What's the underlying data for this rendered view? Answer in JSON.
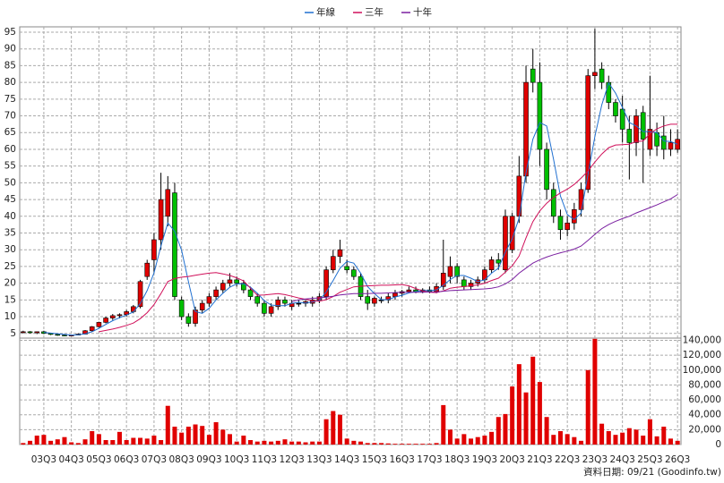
{
  "chart_data": {
    "type": "candlestick",
    "categories": [
      null,
      null,
      null,
      "03Q3",
      null,
      null,
      null,
      "04Q3",
      null,
      null,
      null,
      "05Q3",
      null,
      null,
      null,
      "06Q3",
      null,
      null,
      null,
      "07Q3",
      null,
      null,
      null,
      "08Q3",
      null,
      null,
      null,
      "09Q3",
      null,
      null,
      null,
      "10Q3",
      null,
      null,
      null,
      "11Q3",
      null,
      null,
      null,
      "12Q3",
      null,
      null,
      null,
      "13Q3",
      null,
      null,
      null,
      "14Q3",
      null,
      null,
      null,
      "15Q3",
      null,
      null,
      null,
      "16Q3",
      null,
      null,
      null,
      "17Q3",
      null,
      null,
      null,
      "18Q3",
      null,
      null,
      null,
      "19Q3",
      null,
      null,
      null,
      "20Q3",
      null,
      null,
      null,
      "21Q3",
      null,
      null,
      null,
      "22Q3",
      null,
      null,
      null,
      "23Q3",
      null,
      null,
      null,
      "24Q3",
      null,
      null,
      null,
      "25Q3",
      null,
      null,
      null,
      "26Q3"
    ],
    "ohlc": {
      "open": [
        5.3,
        5.5,
        5.2,
        5.5,
        5.0,
        4.7,
        4.5,
        4.4,
        4.5,
        4.8,
        5.8,
        7.0,
        8.3,
        9.6,
        10.3,
        10.6,
        11.5,
        13,
        22,
        27,
        33,
        40,
        47,
        15,
        10,
        8,
        12,
        14,
        16,
        18,
        20,
        21,
        20,
        18,
        16,
        14,
        11,
        13,
        15,
        13,
        14,
        14,
        14,
        15,
        16,
        24,
        28,
        25,
        24,
        22,
        16,
        14,
        15,
        15,
        16,
        17,
        17.5,
        18,
        17.5,
        18,
        17.5,
        19,
        22,
        25,
        21,
        19,
        20,
        21,
        24,
        27,
        24,
        30,
        40,
        52,
        84,
        80,
        60,
        48,
        40,
        36,
        38,
        42,
        48,
        82,
        84,
        80,
        74,
        72,
        66,
        62,
        71,
        60,
        65,
        64,
        60,
        60
      ],
      "high": [
        5.8,
        5.7,
        5.6,
        5.8,
        5.1,
        4.9,
        4.7,
        4.6,
        5.0,
        6.0,
        7.2,
        8.5,
        10,
        10.8,
        11,
        12,
        13.5,
        21,
        27,
        35,
        53,
        52,
        50,
        16,
        11,
        13,
        15,
        17,
        19,
        21,
        23,
        22,
        21,
        19,
        17,
        15,
        14,
        16,
        16,
        15,
        15,
        15,
        16,
        17,
        25,
        30,
        33,
        27,
        25,
        23,
        18,
        16,
        16,
        17,
        18,
        18,
        19,
        19,
        18.5,
        19,
        20,
        33,
        28,
        26,
        22,
        21,
        22,
        25,
        28,
        29,
        42,
        41,
        58,
        85,
        90,
        86,
        62,
        50,
        42,
        40,
        44,
        50,
        84,
        96,
        86,
        82,
        75,
        76,
        70,
        72,
        73,
        82,
        68,
        70,
        66,
        66
      ],
      "low": [
        5.0,
        5.0,
        4.8,
        4.8,
        4.5,
        4.3,
        4.2,
        4.2,
        4.4,
        4.7,
        5.6,
        6.8,
        8.0,
        9.0,
        9.5,
        10,
        11,
        12.5,
        21,
        23,
        30,
        37,
        15,
        9,
        7,
        7,
        11,
        13,
        15,
        17,
        19,
        19,
        17,
        15,
        13,
        10,
        10,
        12,
        13,
        12,
        13,
        13,
        13,
        14,
        15,
        23,
        26,
        23,
        21,
        15,
        12,
        13,
        14,
        14,
        15,
        16,
        17,
        17,
        17,
        17,
        17,
        18,
        20,
        20,
        18,
        18,
        19,
        20,
        23,
        24,
        23,
        29,
        38,
        50,
        77,
        55,
        45,
        38,
        33,
        34,
        36,
        40,
        47,
        78,
        78,
        72,
        68,
        62,
        51,
        58,
        50,
        58,
        58,
        57,
        58,
        59
      ],
      "close": [
        5.5,
        5.2,
        5.5,
        5.0,
        4.7,
        4.5,
        4.4,
        4.5,
        4.8,
        5.8,
        7.0,
        8.3,
        9.6,
        10.3,
        10.6,
        11.5,
        13,
        20.5,
        26,
        33,
        45,
        48,
        16,
        10,
        8,
        12,
        14,
        16,
        18,
        20,
        21,
        20,
        18,
        16,
        14,
        11,
        13,
        15,
        14,
        14,
        14,
        14.5,
        15,
        16,
        24,
        28,
        30,
        24,
        22,
        16,
        14,
        15.5,
        15,
        16,
        17,
        17.5,
        18,
        17.5,
        18,
        17.5,
        19,
        23,
        25,
        22,
        19,
        20,
        21,
        24,
        27,
        26,
        40,
        40,
        52,
        80,
        80,
        60,
        48,
        40,
        36,
        38,
        42,
        48,
        82,
        83,
        80,
        74,
        70,
        66,
        62,
        70,
        63,
        66,
        61,
        60,
        62,
        63
      ]
    },
    "up_color": "#e00000",
    "down_color": "#00c000",
    "series": [
      {
        "name": "年線",
        "color": "#1f6fd0",
        "values": [
          null,
          null,
          null,
          5.3,
          5.1,
          4.9,
          4.7,
          4.5,
          4.6,
          4.9,
          5.5,
          6.5,
          7.7,
          8.8,
          9.7,
          10.5,
          11.4,
          13.9,
          17.8,
          23.1,
          31.1,
          38,
          35.5,
          29.8,
          20.5,
          11.5,
          11,
          12.5,
          15,
          17,
          18.8,
          19.8,
          19.8,
          18.8,
          17,
          14.8,
          13.5,
          13.3,
          13.3,
          14,
          14.3,
          14.1,
          14.4,
          14.9,
          17.4,
          20.8,
          24.5,
          26.5,
          26,
          23,
          19,
          16.9,
          15.1,
          15.1,
          15.9,
          16.4,
          17.1,
          17.5,
          17.8,
          17.8,
          18,
          19.4,
          21.1,
          22.3,
          22.3,
          21.5,
          20.5,
          21,
          23,
          24.5,
          29.3,
          33.3,
          39.5,
          53,
          63,
          68,
          67,
          57,
          46,
          40.5,
          39,
          41,
          52.5,
          63.8,
          73.3,
          79.8,
          76.8,
          72.5,
          68,
          67,
          65.3,
          65.3,
          65,
          62.5,
          62.3,
          61.5
        ]
      },
      {
        "name": "三年",
        "color": "#d0105a",
        "values": [
          null,
          null,
          null,
          null,
          null,
          null,
          null,
          null,
          null,
          null,
          null,
          5.5,
          5.9,
          6.3,
          6.8,
          7.4,
          8.1,
          9.4,
          11.2,
          13.6,
          16.9,
          20.5,
          21.4,
          21.8,
          22,
          22.4,
          22.7,
          23,
          23.2,
          22.8,
          22.3,
          21.6,
          20.7,
          18.5,
          16.4,
          16.5,
          16.7,
          16.9,
          16.6,
          16.1,
          15.6,
          15.2,
          14.8,
          14.6,
          15.1,
          16,
          17.3,
          18.1,
          18.9,
          19.1,
          19.2,
          19.3,
          19.4,
          19.4,
          19.5,
          19.6,
          19.2,
          18.4,
          17.7,
          17.3,
          17.2,
          17.7,
          18.5,
          18.8,
          19,
          19.2,
          19.5,
          20,
          20.8,
          21.5,
          23.3,
          25.2,
          28.1,
          33.5,
          38.4,
          41.6,
          43.9,
          45.6,
          47,
          48.1,
          49.5,
          51.4,
          53.5,
          56.2,
          58.6,
          60.5,
          61.3,
          61.4,
          61.5,
          62.3,
          62.5,
          64.7,
          66.1,
          67,
          67.5,
          67.5
        ]
      },
      {
        "name": "十年",
        "color": "#7a1fa0",
        "values": [
          null,
          null,
          null,
          null,
          null,
          null,
          null,
          null,
          null,
          null,
          null,
          null,
          null,
          null,
          null,
          null,
          null,
          null,
          null,
          null,
          null,
          null,
          null,
          null,
          null,
          null,
          null,
          null,
          null,
          null,
          null,
          null,
          null,
          null,
          null,
          null,
          null,
          null,
          null,
          14.5,
          15,
          15.3,
          15.5,
          15.6,
          15.8,
          16.1,
          16.5,
          16.7,
          16.9,
          16.9,
          16.9,
          17,
          17,
          17.1,
          17.2,
          17.3,
          17.3,
          17.3,
          17.3,
          17.4,
          17.4,
          17.6,
          17.8,
          17.9,
          18,
          18.1,
          18.2,
          18.3,
          18.5,
          18.9,
          19.8,
          21.1,
          23,
          24.5,
          26,
          27,
          27.8,
          28.5,
          29.1,
          29.6,
          30.2,
          31.1,
          32.8,
          34.6,
          36.3,
          37.5,
          38.5,
          39.3,
          40,
          41,
          41.8,
          42.6,
          43.4,
          44.3,
          45.2,
          46.5
        ]
      }
    ],
    "ylim": [
      3.6,
      96.6
    ],
    "yticks": [
      5,
      10,
      15,
      20,
      25,
      30,
      35,
      40,
      45,
      50,
      55,
      60,
      65,
      70,
      75,
      80,
      85,
      90,
      95
    ],
    "grid": true,
    "volume": {
      "color": "#e00000",
      "values": [
        2000,
        5000,
        12000,
        13000,
        5000,
        7000,
        10000,
        3000,
        2000,
        7000,
        18000,
        14000,
        6000,
        6000,
        17000,
        6000,
        9000,
        9000,
        8000,
        12000,
        6000,
        52000,
        24000,
        16000,
        24000,
        27000,
        25000,
        13000,
        30000,
        20000,
        14000,
        4000,
        12000,
        6000,
        4000,
        5000,
        4000,
        5000,
        7000,
        4000,
        4000,
        3000,
        4000,
        4000,
        34000,
        45000,
        40000,
        8000,
        5000,
        4000,
        2000,
        2000,
        2000,
        1500,
        1000,
        1000,
        1000,
        1000,
        1000,
        1000,
        2000,
        53000,
        20000,
        8000,
        14000,
        8000,
        10000,
        12000,
        17000,
        37000,
        41000,
        78000,
        108000,
        70000,
        118000,
        84000,
        37000,
        13000,
        18000,
        14000,
        10000,
        5000,
        100000,
        142000,
        28000,
        18000,
        13000,
        16000,
        22000,
        20000,
        12000,
        34000,
        11000,
        24000,
        8000,
        5000
      ],
      "ylim": [
        0,
        143000
      ],
      "yticks": [
        0,
        {
          "value": 20000,
          "label": "20,000"
        },
        {
          "value": 40000,
          "label": "40,000"
        },
        {
          "value": 60000,
          "label": "60,000"
        },
        {
          "value": 80000,
          "label": "80,000"
        },
        {
          "value": 100000,
          "label": "100,000"
        },
        {
          "value": 120000,
          "label": "120,000"
        },
        {
          "value": 140000,
          "label": "140,000"
        }
      ]
    },
    "source_note": "資料日期: 09/21 (Goodinfo.tw)"
  }
}
